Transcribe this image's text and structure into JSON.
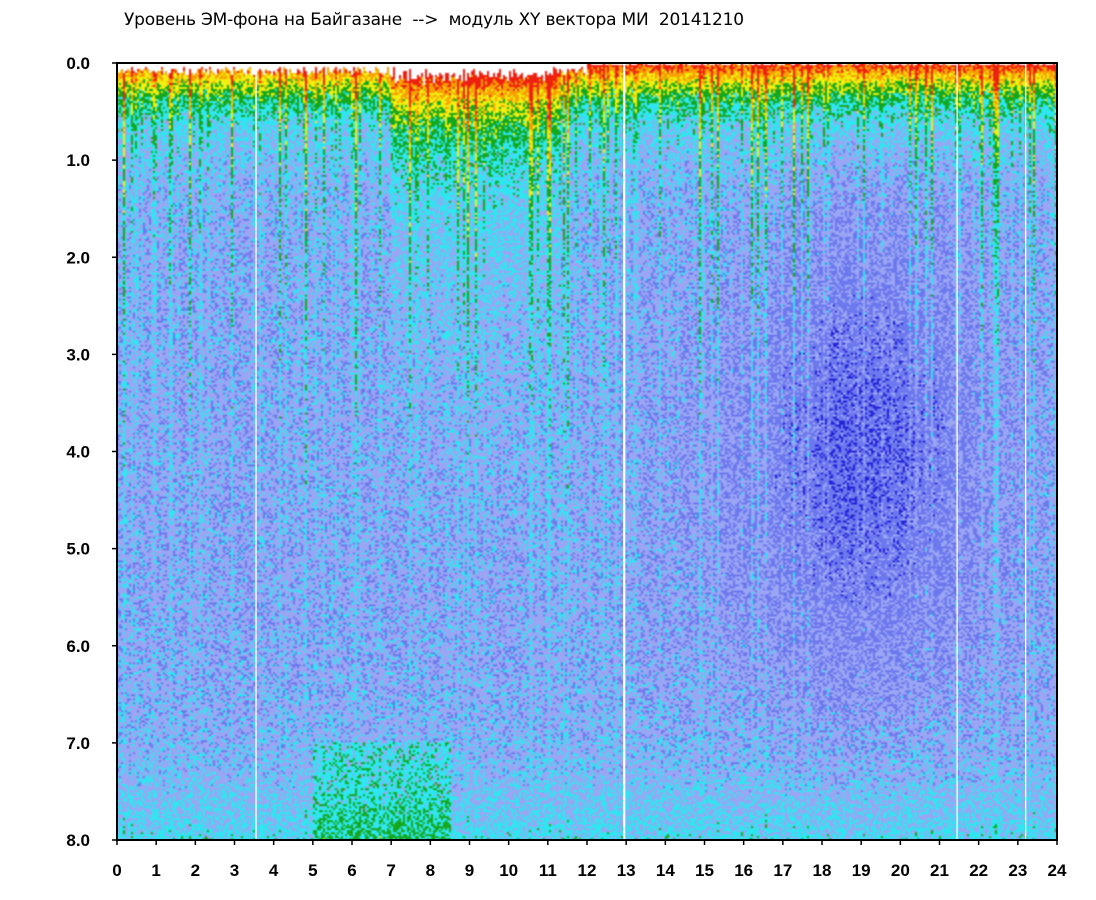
{
  "chart_data": {
    "type": "heatmap",
    "title": "Уровень ЭМ-фона на Байгазане  -->  модуль XY вектора МИ  20141210",
    "xlabel": "",
    "ylabel": "",
    "xlim": [
      0,
      24
    ],
    "ylim": [
      8.0,
      0.0
    ],
    "y_inverted": true,
    "x_ticks": [
      "0",
      "1",
      "2",
      "3",
      "4",
      "5",
      "6",
      "7",
      "8",
      "9",
      "10",
      "11",
      "12",
      "13",
      "14",
      "15",
      "16",
      "17",
      "18",
      "19",
      "20",
      "21",
      "22",
      "23",
      "24"
    ],
    "y_ticks": [
      "0.0",
      "1.0",
      "2.0",
      "3.0",
      "4.0",
      "5.0",
      "6.0",
      "7.0",
      "8.0"
    ],
    "grid": false,
    "legend": "none",
    "colors": {
      "background": "#ffffff",
      "deep_blue": "#2323d8",
      "mid_blue": "#6c78ee",
      "light_blue": "#9aa6f4",
      "cyan": "#2fe6f0",
      "green": "#14a81e",
      "yellow": "#f2ee10",
      "orange": "#f8a000",
      "red": "#ee2010"
    },
    "color_scale": [
      "#2323d8",
      "#6c78ee",
      "#9aa6f4",
      "#2fe6f0",
      "#14a81e",
      "#f2ee10",
      "#f8a000",
      "#ee2010"
    ],
    "white_lines_hour": [
      3.55,
      12.95,
      21.45,
      23.2
    ],
    "high_activity_hours": [
      [
        7.0,
        11.3
      ]
    ],
    "high_activity_depth": [
      [
        0.0,
        3.0
      ]
    ],
    "low_activity_region": {
      "hours": [
        15.5,
        22.5
      ],
      "depth": [
        1.5,
        6.5
      ]
    }
  }
}
